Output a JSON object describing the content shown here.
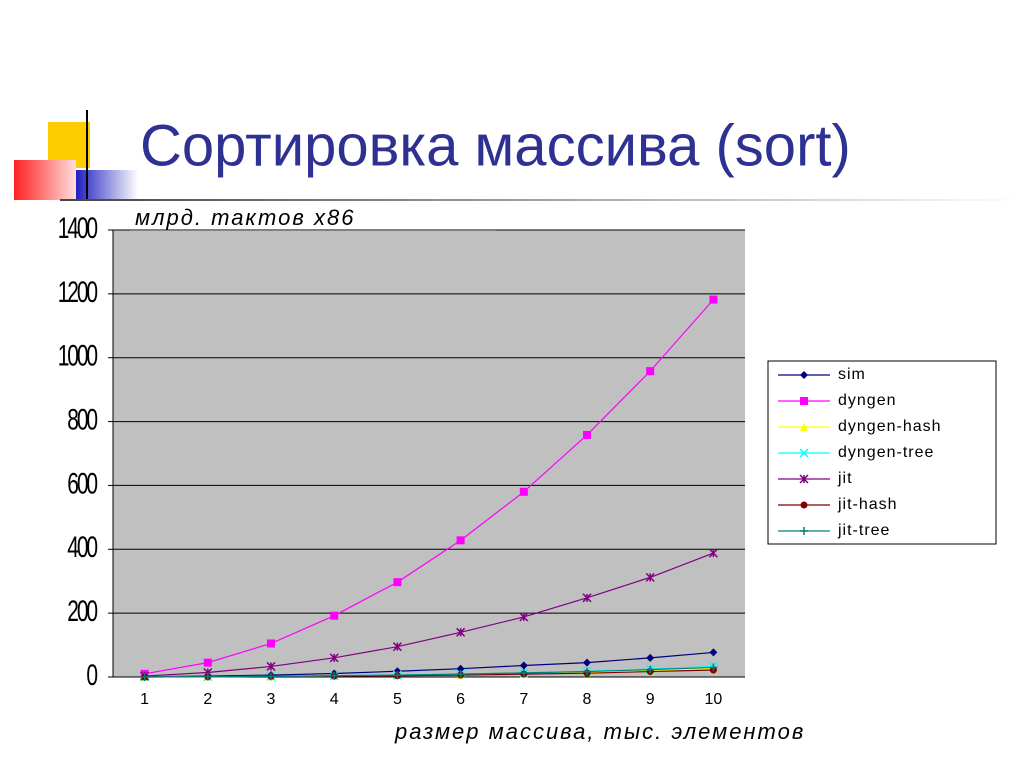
{
  "chart_data": {
    "type": "line",
    "title": "Сортировка массива (sort)",
    "y_label": "млрд. тактов x86",
    "x_label": "размер массива, тыс. элементов",
    "categories": [
      "1",
      "2",
      "3",
      "4",
      "5",
      "6",
      "7",
      "8",
      "9",
      "10"
    ],
    "ylim": [
      0,
      1400
    ],
    "yticks": [
      0,
      200,
      400,
      600,
      800,
      1000,
      1200,
      1400
    ],
    "grid": true,
    "legend": "right",
    "series": [
      {
        "name": "sim",
        "color": "#000080",
        "marker": "diamond",
        "values": [
          1,
          3,
          6,
          11,
          18,
          26,
          36,
          45,
          60,
          77
        ]
      },
      {
        "name": "dyngen",
        "color": "#ff00ff",
        "marker": "square",
        "values": [
          10,
          45,
          105,
          192,
          297,
          428,
          580,
          758,
          958,
          1182
        ]
      },
      {
        "name": "dyngen-hash",
        "color": "#ffff00",
        "marker": "triangle",
        "values": [
          0,
          1,
          2,
          3,
          5,
          7,
          10,
          14,
          20,
          27
        ]
      },
      {
        "name": "dyngen-tree",
        "color": "#00ffff",
        "marker": "x",
        "values": [
          0,
          1,
          2,
          4,
          6,
          9,
          13,
          18,
          25,
          33
        ]
      },
      {
        "name": "jit",
        "color": "#800080",
        "marker": "star",
        "values": [
          3,
          14,
          33,
          60,
          95,
          140,
          188,
          248,
          312,
          388
        ]
      },
      {
        "name": "jit-hash",
        "color": "#800000",
        "marker": "circle",
        "values": [
          0,
          1,
          2,
          3,
          4,
          6,
          9,
          12,
          17,
          22
        ]
      },
      {
        "name": "jit-tree",
        "color": "#008080",
        "marker": "plus",
        "values": [
          0,
          1,
          2,
          4,
          6,
          9,
          13,
          17,
          23,
          30
        ]
      }
    ]
  }
}
